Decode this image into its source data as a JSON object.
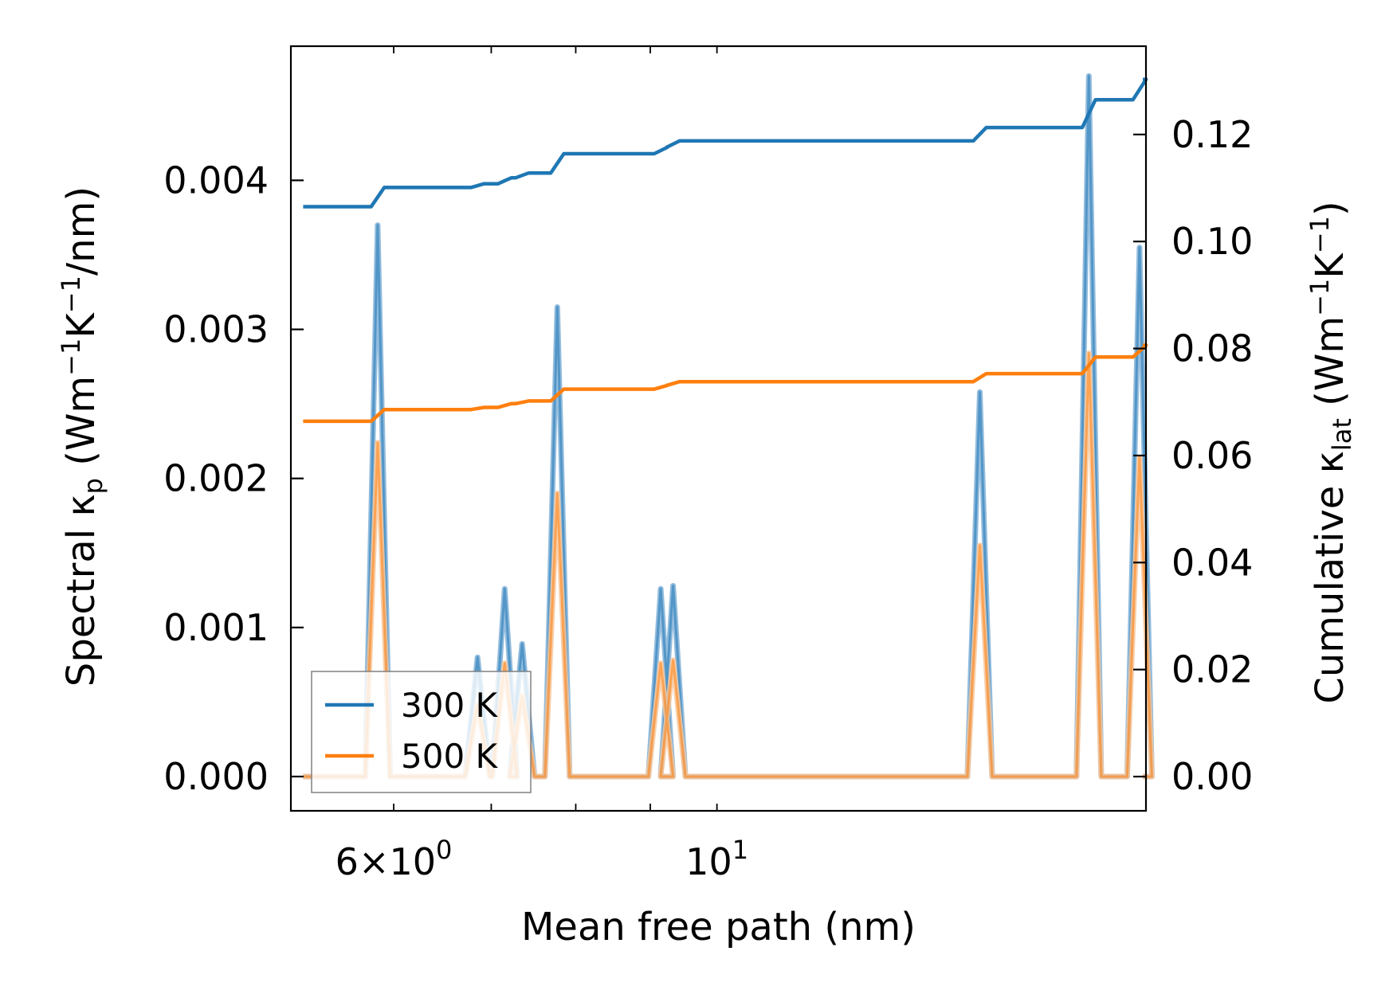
{
  "chart_data": {
    "type": "line",
    "title": "",
    "xlabel": "Mean free path (nm)",
    "ylabel_left": {
      "text": "Spectral κ",
      "sub": "p",
      "units_prefix": " (Wm",
      "sup1": "−1",
      "mid": "K",
      "sup2": "−1",
      "suffix": "/nm)"
    },
    "ylabel_right": {
      "text": "Cumulative κ",
      "sub": "lat",
      "units_prefix": " (Wm",
      "sup1": "−1",
      "mid": "K",
      "sup2": "−1",
      "suffix": ")"
    },
    "x_scale": "log",
    "xlim": [
      5.1,
      19.7
    ],
    "ylim_left": [
      -0.00023,
      0.0049
    ],
    "ylim_right": [
      -0.0064,
      0.1365
    ],
    "x_tick_labels": [
      {
        "value": 6,
        "mantissa": "6",
        "times": "×",
        "base": "10",
        "exp": "0"
      },
      {
        "value": 10,
        "mantissa": "",
        "times": "",
        "base": "10",
        "exp": "1"
      }
    ],
    "x_minor_ticks": [
      6,
      7,
      8,
      9,
      10
    ],
    "y_left_ticks": [
      "0.000",
      "0.001",
      "0.002",
      "0.003",
      "0.004"
    ],
    "y_left_tick_values": [
      0,
      0.001,
      0.002,
      0.003,
      0.004
    ],
    "y_right_ticks": [
      "0.00",
      "0.02",
      "0.04",
      "0.06",
      "0.08",
      "0.10",
      "0.12"
    ],
    "y_right_tick_values": [
      0,
      0.02,
      0.04,
      0.06,
      0.08,
      0.1,
      0.12
    ],
    "legend": {
      "position": "lower-left",
      "entries": [
        "300 K",
        "500 K"
      ]
    },
    "colors": {
      "300K": "#1f77b4",
      "500K": "#ff7f0e",
      "spectral_300K": "#7fb0d8",
      "spectral_500K": "#f8c79a"
    },
    "series_spectral": [
      {
        "name": "300 K",
        "x_range": [
          5.2,
          19.6
        ],
        "peaks": [
          {
            "x": 5.85,
            "y": 0.0037
          },
          {
            "x": 6.85,
            "y": 0.0008
          },
          {
            "x": 7.15,
            "y": 0.00126
          },
          {
            "x": 7.35,
            "y": 0.00089
          },
          {
            "x": 7.77,
            "y": 0.00315
          },
          {
            "x": 9.15,
            "y": 0.00126
          },
          {
            "x": 9.33,
            "y": 0.00128
          },
          {
            "x": 15.15,
            "y": 0.00258
          },
          {
            "x": 18.0,
            "y": 0.0047
          },
          {
            "x": 19.5,
            "y": 0.00355
          }
        ]
      },
      {
        "name": "500 K",
        "x_range": [
          5.2,
          19.6
        ],
        "peaks": [
          {
            "x": 5.85,
            "y": 0.00224
          },
          {
            "x": 6.85,
            "y": 0.00048
          },
          {
            "x": 7.15,
            "y": 0.00076
          },
          {
            "x": 7.35,
            "y": 0.00054
          },
          {
            "x": 7.77,
            "y": 0.0019
          },
          {
            "x": 9.15,
            "y": 0.00076
          },
          {
            "x": 9.33,
            "y": 0.00078
          },
          {
            "x": 15.15,
            "y": 0.00155
          },
          {
            "x": 18.0,
            "y": 0.00284
          },
          {
            "x": 19.5,
            "y": 0.00214
          }
        ]
      }
    ],
    "series_cumulative": [
      {
        "name": "300 K",
        "start": {
          "x": 5.2,
          "y": 0.1065
        },
        "steps": [
          {
            "x": 5.85,
            "y": 0.1101
          },
          {
            "x": 6.85,
            "y": 0.1108
          },
          {
            "x": 7.15,
            "y": 0.1119
          },
          {
            "x": 7.35,
            "y": 0.1128
          },
          {
            "x": 7.77,
            "y": 0.1164
          },
          {
            "x": 9.15,
            "y": 0.1176
          },
          {
            "x": 9.33,
            "y": 0.1188
          },
          {
            "x": 15.15,
            "y": 0.1213
          },
          {
            "x": 18.0,
            "y": 0.1265
          },
          {
            "x": 19.5,
            "y": 0.1303
          }
        ],
        "end_x": 19.6
      },
      {
        "name": "500 K",
        "start": {
          "x": 5.2,
          "y": 0.0664
        },
        "steps": [
          {
            "x": 5.85,
            "y": 0.0686
          },
          {
            "x": 6.85,
            "y": 0.069
          },
          {
            "x": 7.15,
            "y": 0.0697
          },
          {
            "x": 7.35,
            "y": 0.0702
          },
          {
            "x": 7.77,
            "y": 0.0724
          },
          {
            "x": 9.15,
            "y": 0.0731
          },
          {
            "x": 9.33,
            "y": 0.0738
          },
          {
            "x": 15.15,
            "y": 0.0753
          },
          {
            "x": 18.0,
            "y": 0.0784
          },
          {
            "x": 19.5,
            "y": 0.0806
          }
        ],
        "end_x": 19.6
      }
    ]
  }
}
